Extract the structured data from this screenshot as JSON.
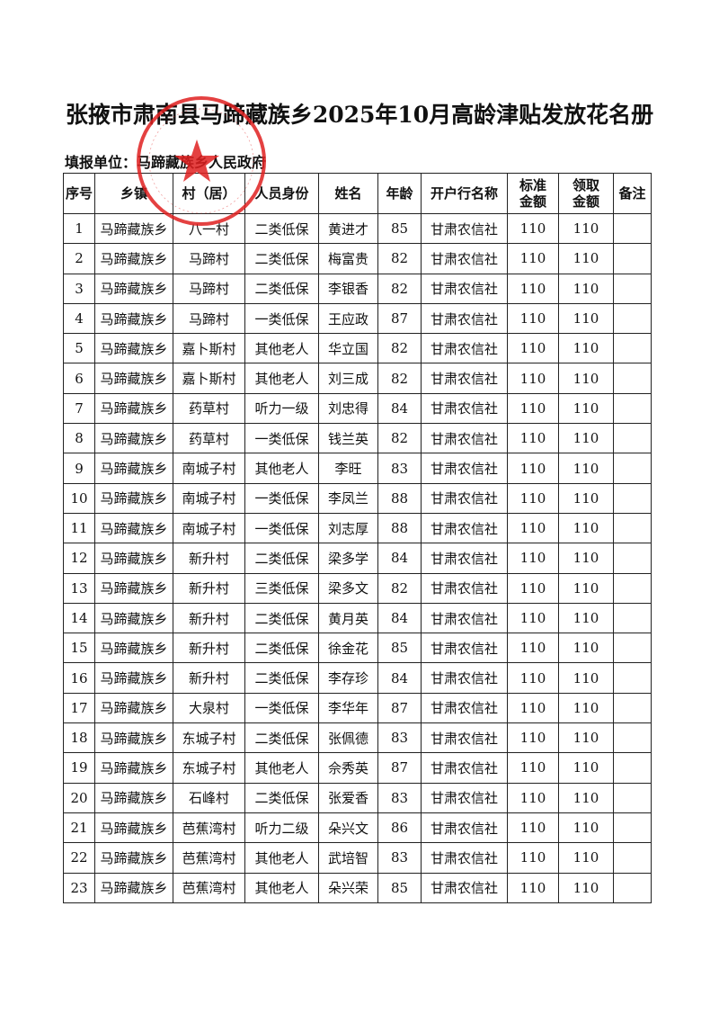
{
  "title": "张掖市肃南县马蹄藏族乡2025年10月高龄津贴发放花名册",
  "unit_label": "填报单位：",
  "unit_value": "马蹄藏族乡人民政府",
  "stamp_color": "#e02020",
  "headers": [
    "序号",
    "乡镇",
    "村（居）",
    "人员身份",
    "姓名",
    "年龄",
    "开户行名称",
    "标准\n金额",
    "领取\n金额",
    "备注"
  ],
  "rows": [
    [
      "1",
      "马蹄藏族乡",
      "八一村",
      "二类低保",
      "黄进才",
      "85",
      "甘肃农信社",
      "110",
      "110",
      ""
    ],
    [
      "2",
      "马蹄藏族乡",
      "马蹄村",
      "二类低保",
      "梅富贵",
      "82",
      "甘肃农信社",
      "110",
      "110",
      ""
    ],
    [
      "3",
      "马蹄藏族乡",
      "马蹄村",
      "二类低保",
      "李银香",
      "82",
      "甘肃农信社",
      "110",
      "110",
      ""
    ],
    [
      "4",
      "马蹄藏族乡",
      "马蹄村",
      "一类低保",
      "王应政",
      "87",
      "甘肃农信社",
      "110",
      "110",
      ""
    ],
    [
      "5",
      "马蹄藏族乡",
      "嘉卜斯村",
      "其他老人",
      "华立国",
      "82",
      "甘肃农信社",
      "110",
      "110",
      ""
    ],
    [
      "6",
      "马蹄藏族乡",
      "嘉卜斯村",
      "其他老人",
      "刘三成",
      "82",
      "甘肃农信社",
      "110",
      "110",
      ""
    ],
    [
      "7",
      "马蹄藏族乡",
      "药草村",
      "听力一级",
      "刘忠得",
      "84",
      "甘肃农信社",
      "110",
      "110",
      ""
    ],
    [
      "8",
      "马蹄藏族乡",
      "药草村",
      "一类低保",
      "钱兰英",
      "82",
      "甘肃农信社",
      "110",
      "110",
      ""
    ],
    [
      "9",
      "马蹄藏族乡",
      "南城子村",
      "其他老人",
      "李旺",
      "83",
      "甘肃农信社",
      "110",
      "110",
      ""
    ],
    [
      "10",
      "马蹄藏族乡",
      "南城子村",
      "一类低保",
      "李凤兰",
      "88",
      "甘肃农信社",
      "110",
      "110",
      ""
    ],
    [
      "11",
      "马蹄藏族乡",
      "南城子村",
      "一类低保",
      "刘志厚",
      "88",
      "甘肃农信社",
      "110",
      "110",
      ""
    ],
    [
      "12",
      "马蹄藏族乡",
      "新升村",
      "二类低保",
      "梁多学",
      "84",
      "甘肃农信社",
      "110",
      "110",
      ""
    ],
    [
      "13",
      "马蹄藏族乡",
      "新升村",
      "三类低保",
      "梁多文",
      "82",
      "甘肃农信社",
      "110",
      "110",
      ""
    ],
    [
      "14",
      "马蹄藏族乡",
      "新升村",
      "二类低保",
      "黄月英",
      "84",
      "甘肃农信社",
      "110",
      "110",
      ""
    ],
    [
      "15",
      "马蹄藏族乡",
      "新升村",
      "二类低保",
      "徐金花",
      "85",
      "甘肃农信社",
      "110",
      "110",
      ""
    ],
    [
      "16",
      "马蹄藏族乡",
      "新升村",
      "二类低保",
      "李存珍",
      "84",
      "甘肃农信社",
      "110",
      "110",
      ""
    ],
    [
      "17",
      "马蹄藏族乡",
      "大泉村",
      "一类低保",
      "李华年",
      "87",
      "甘肃农信社",
      "110",
      "110",
      ""
    ],
    [
      "18",
      "马蹄藏族乡",
      "东城子村",
      "二类低保",
      "张佩德",
      "83",
      "甘肃农信社",
      "110",
      "110",
      ""
    ],
    [
      "19",
      "马蹄藏族乡",
      "东城子村",
      "其他老人",
      "佘秀英",
      "87",
      "甘肃农信社",
      "110",
      "110",
      ""
    ],
    [
      "20",
      "马蹄藏族乡",
      "石峰村",
      "二类低保",
      "张爱香",
      "83",
      "甘肃农信社",
      "110",
      "110",
      ""
    ],
    [
      "21",
      "马蹄藏族乡",
      "芭蕉湾村",
      "听力二级",
      "朵兴文",
      "86",
      "甘肃农信社",
      "110",
      "110",
      ""
    ],
    [
      "22",
      "马蹄藏族乡",
      "芭蕉湾村",
      "其他老人",
      "武培智",
      "83",
      "甘肃农信社",
      "110",
      "110",
      ""
    ],
    [
      "23",
      "马蹄藏族乡",
      "芭蕉湾村",
      "其他老人",
      "朵兴荣",
      "85",
      "甘肃农信社",
      "110",
      "110",
      ""
    ]
  ]
}
